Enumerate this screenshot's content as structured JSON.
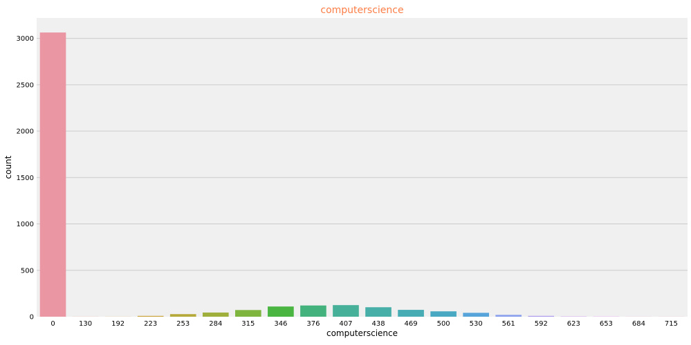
{
  "chart_data": {
    "type": "bar",
    "title": "computerscience",
    "xlabel": "computerscience",
    "ylabel": "count",
    "categories": [
      "0",
      "130",
      "192",
      "223",
      "253",
      "284",
      "315",
      "346",
      "376",
      "407",
      "438",
      "469",
      "500",
      "530",
      "561",
      "592",
      "623",
      "653",
      "684",
      "715"
    ],
    "values": [
      3063,
      1,
      1,
      9,
      28,
      45,
      72,
      110,
      121,
      125,
      102,
      74,
      58,
      42,
      20,
      9,
      3,
      2,
      1,
      1
    ],
    "colors": [
      "#ea96a3",
      "#e89b81",
      "#de9e5e",
      "#c9a43b",
      "#b6a93b",
      "#a0ae3c",
      "#7eb53e",
      "#4ab541",
      "#44b27d",
      "#46b098",
      "#47aea8",
      "#48acb4",
      "#4aa9c2",
      "#56a4da",
      "#8aa0ec",
      "#ad9aec",
      "#c993ec",
      "#df8fec",
      "#e78ed7",
      "#e991bb"
    ],
    "yticks": [
      0,
      500,
      1000,
      1500,
      2000,
      2500,
      3000
    ],
    "ylim": [
      0,
      3220
    ],
    "grid": true,
    "title_color": "#fc7d46",
    "plot_background": "#f0f0f0",
    "grid_color": "#cbcbcb"
  }
}
